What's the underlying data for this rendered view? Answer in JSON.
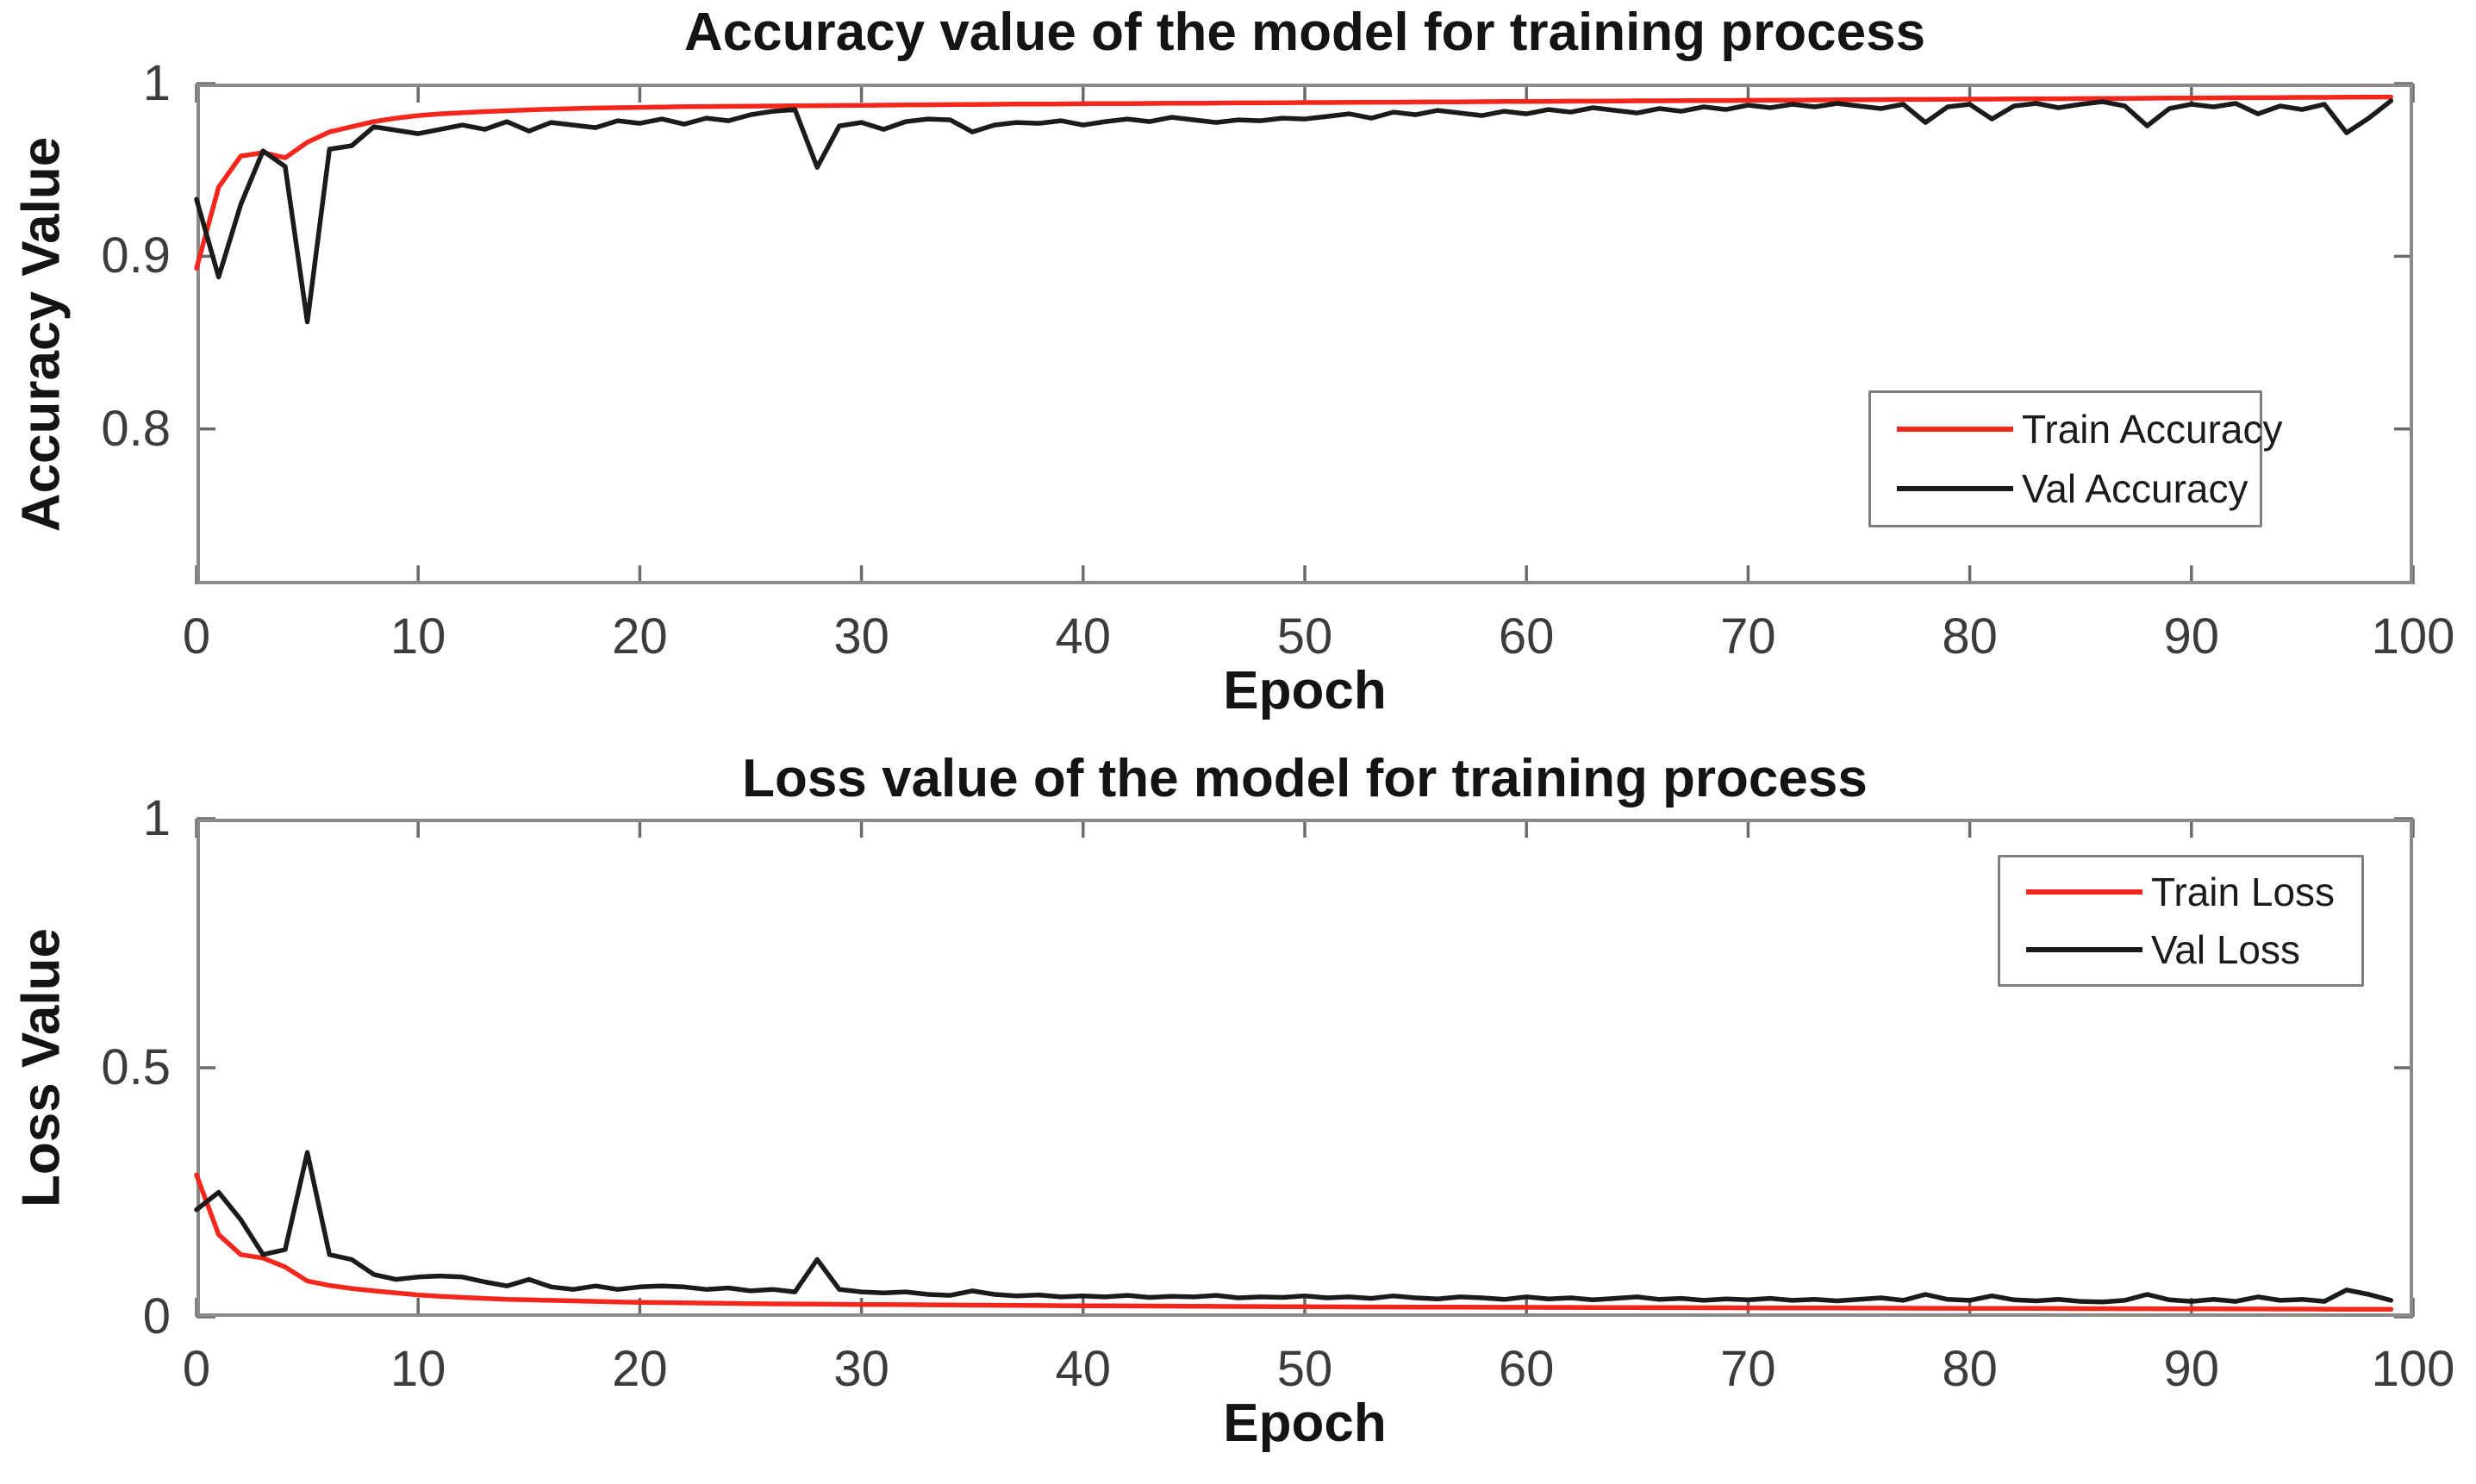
{
  "style": {
    "background": "#ffffff",
    "box_color": "#8a8a8a",
    "tick_color": "#6b6b6b",
    "tick_label_color": "#3c3c3c",
    "text_color": "#141414",
    "train_color": "#f5271d",
    "val_color": "#1b1b1b"
  },
  "chart_data": [
    {
      "type": "line",
      "title": "Accuracy value of the model for training process",
      "xlabel": "Epoch",
      "ylabel": "Accuracy Value",
      "xlim": [
        0,
        100
      ],
      "ylim": [
        0.71,
        1.0
      ],
      "grid": false,
      "x_start": 0,
      "x_step": 1,
      "x_ticks": [
        {
          "value": 0,
          "label": "0"
        },
        {
          "value": 10,
          "label": "10"
        },
        {
          "value": 20,
          "label": "20"
        },
        {
          "value": 30,
          "label": "30"
        },
        {
          "value": 40,
          "label": "40"
        },
        {
          "value": 50,
          "label": "50"
        },
        {
          "value": 60,
          "label": "60"
        },
        {
          "value": 70,
          "label": "70"
        },
        {
          "value": 80,
          "label": "80"
        },
        {
          "value": 90,
          "label": "90"
        },
        {
          "value": 100,
          "label": "100"
        }
      ],
      "y_ticks": [
        {
          "value": 1.0,
          "label": "1"
        },
        {
          "value": 0.9,
          "label": "0.9"
        },
        {
          "value": 0.8,
          "label": "0.8"
        }
      ],
      "legend": {
        "position": "right-middle",
        "entries": [
          {
            "label": "Train Accuracy",
            "color": "#f5271d"
          },
          {
            "label": "Val Accuracy",
            "color": "#1b1b1b"
          }
        ]
      },
      "series": [
        {
          "name": "Train Accuracy",
          "color": "#f5271d",
          "values": [
            0.893,
            0.94,
            0.958,
            0.96,
            0.957,
            0.966,
            0.972,
            0.975,
            0.978,
            0.98,
            0.9815,
            0.9825,
            0.9832,
            0.9838,
            0.9843,
            0.9848,
            0.9852,
            0.9855,
            0.9858,
            0.986,
            0.9862,
            0.9864,
            0.9866,
            0.9867,
            0.9868,
            0.9869,
            0.987,
            0.9871,
            0.9872,
            0.9873,
            0.9874,
            0.9875,
            0.9876,
            0.9877,
            0.9878,
            0.9879,
            0.988,
            0.9881,
            0.9881,
            0.9882,
            0.9883,
            0.9884,
            0.9884,
            0.9885,
            0.9886,
            0.9886,
            0.9887,
            0.9888,
            0.9888,
            0.9889,
            0.989,
            0.989,
            0.9891,
            0.9892,
            0.9892,
            0.9893,
            0.9894,
            0.9894,
            0.9895,
            0.9896,
            0.9896,
            0.9897,
            0.9898,
            0.9898,
            0.9899,
            0.99,
            0.99,
            0.9901,
            0.9902,
            0.9902,
            0.9903,
            0.9904,
            0.9904,
            0.9905,
            0.9906,
            0.9906,
            0.9907,
            0.9908,
            0.9908,
            0.9909,
            0.991,
            0.991,
            0.9911,
            0.9912,
            0.9912,
            0.9913,
            0.9914,
            0.9914,
            0.9915,
            0.9916,
            0.9916,
            0.9917,
            0.9918,
            0.9918,
            0.9919,
            0.992,
            0.992,
            0.9921,
            0.9922,
            0.9922
          ]
        },
        {
          "name": "Val Accuracy",
          "color": "#1b1b1b",
          "values": [
            0.933,
            0.888,
            0.93,
            0.961,
            0.952,
            0.862,
            0.962,
            0.964,
            0.975,
            0.973,
            0.971,
            0.9735,
            0.976,
            0.9735,
            0.978,
            0.9725,
            0.9775,
            0.976,
            0.9745,
            0.9785,
            0.977,
            0.9795,
            0.9765,
            0.98,
            0.9785,
            0.982,
            0.984,
            0.985,
            0.9515,
            0.9755,
            0.9775,
            0.9735,
            0.978,
            0.9795,
            0.979,
            0.972,
            0.976,
            0.9775,
            0.977,
            0.9785,
            0.976,
            0.978,
            0.9795,
            0.978,
            0.9805,
            0.979,
            0.9775,
            0.979,
            0.9785,
            0.98,
            0.9795,
            0.981,
            0.9825,
            0.98,
            0.9835,
            0.982,
            0.9845,
            0.983,
            0.9815,
            0.984,
            0.9825,
            0.985,
            0.9835,
            0.986,
            0.9845,
            0.983,
            0.9855,
            0.984,
            0.9865,
            0.985,
            0.9875,
            0.986,
            0.988,
            0.9865,
            0.9885,
            0.987,
            0.9855,
            0.988,
            0.9775,
            0.9865,
            0.988,
            0.9795,
            0.987,
            0.9885,
            0.986,
            0.988,
            0.9895,
            0.987,
            0.9755,
            0.9855,
            0.988,
            0.9865,
            0.9885,
            0.9825,
            0.987,
            0.985,
            0.988,
            0.9715,
            0.98,
            0.99
          ]
        }
      ]
    },
    {
      "type": "line",
      "title": "Loss value of the model for training process",
      "xlabel": "Epoch",
      "ylabel": "Loss Value",
      "xlim": [
        0,
        100
      ],
      "ylim": [
        0,
        1.0
      ],
      "grid": false,
      "x_start": 0,
      "x_step": 1,
      "x_ticks": [
        {
          "value": 0,
          "label": "0"
        },
        {
          "value": 10,
          "label": "10"
        },
        {
          "value": 20,
          "label": "20"
        },
        {
          "value": 30,
          "label": "30"
        },
        {
          "value": 40,
          "label": "40"
        },
        {
          "value": 50,
          "label": "50"
        },
        {
          "value": 60,
          "label": "60"
        },
        {
          "value": 70,
          "label": "70"
        },
        {
          "value": 80,
          "label": "80"
        },
        {
          "value": 90,
          "label": "90"
        },
        {
          "value": 100,
          "label": "100"
        }
      ],
      "y_ticks": [
        {
          "value": 1.0,
          "label": "1"
        },
        {
          "value": 0.5,
          "label": "0.5"
        },
        {
          "value": 0,
          "label": "0"
        }
      ],
      "legend": {
        "position": "top-right",
        "entries": [
          {
            "label": "Train Loss",
            "color": "#f5271d"
          },
          {
            "label": "Val Loss",
            "color": "#1b1b1b"
          }
        ]
      },
      "series": [
        {
          "name": "Train Loss",
          "color": "#f5271d",
          "values": [
            0.285,
            0.165,
            0.125,
            0.118,
            0.1,
            0.072,
            0.063,
            0.057,
            0.052,
            0.048,
            0.044,
            0.041,
            0.039,
            0.037,
            0.035,
            0.034,
            0.033,
            0.032,
            0.031,
            0.03,
            0.029,
            0.0285,
            0.028,
            0.0275,
            0.027,
            0.0265,
            0.026,
            0.0258,
            0.0255,
            0.025,
            0.0248,
            0.0246,
            0.0244,
            0.024,
            0.0237,
            0.0234,
            0.0231,
            0.0228,
            0.0226,
            0.0224,
            0.0222,
            0.022,
            0.0218,
            0.0216,
            0.0214,
            0.0212,
            0.021,
            0.0208,
            0.0206,
            0.0204,
            0.0202,
            0.02,
            0.0199,
            0.0198,
            0.0197,
            0.0196,
            0.0194,
            0.0193,
            0.0192,
            0.0191,
            0.019,
            0.0189,
            0.0188,
            0.0187,
            0.0186,
            0.0185,
            0.0184,
            0.0183,
            0.0182,
            0.0181,
            0.018,
            0.0179,
            0.0178,
            0.0177,
            0.0176,
            0.0175,
            0.0174,
            0.0173,
            0.0172,
            0.0171,
            0.017,
            0.0169,
            0.0168,
            0.0167,
            0.0166,
            0.0165,
            0.0164,
            0.0163,
            0.0162,
            0.0161,
            0.016,
            0.0159,
            0.0158,
            0.0157,
            0.0156,
            0.0155,
            0.0154,
            0.0153,
            0.0152,
            0.0151
          ]
        },
        {
          "name": "Val Loss",
          "color": "#1b1b1b",
          "values": [
            0.215,
            0.25,
            0.195,
            0.125,
            0.135,
            0.33,
            0.125,
            0.115,
            0.085,
            0.075,
            0.08,
            0.082,
            0.08,
            0.07,
            0.062,
            0.075,
            0.06,
            0.055,
            0.062,
            0.055,
            0.06,
            0.062,
            0.06,
            0.055,
            0.058,
            0.052,
            0.055,
            0.05,
            0.115,
            0.055,
            0.05,
            0.048,
            0.05,
            0.045,
            0.043,
            0.052,
            0.045,
            0.042,
            0.044,
            0.04,
            0.042,
            0.04,
            0.043,
            0.039,
            0.041,
            0.04,
            0.043,
            0.038,
            0.04,
            0.039,
            0.042,
            0.038,
            0.04,
            0.037,
            0.042,
            0.038,
            0.036,
            0.04,
            0.038,
            0.035,
            0.04,
            0.036,
            0.038,
            0.034,
            0.037,
            0.04,
            0.035,
            0.037,
            0.033,
            0.036,
            0.034,
            0.037,
            0.033,
            0.035,
            0.032,
            0.035,
            0.038,
            0.033,
            0.045,
            0.035,
            0.033,
            0.042,
            0.034,
            0.032,
            0.035,
            0.031,
            0.03,
            0.033,
            0.045,
            0.034,
            0.031,
            0.035,
            0.031,
            0.04,
            0.033,
            0.035,
            0.031,
            0.054,
            0.045,
            0.033
          ]
        }
      ]
    }
  ]
}
